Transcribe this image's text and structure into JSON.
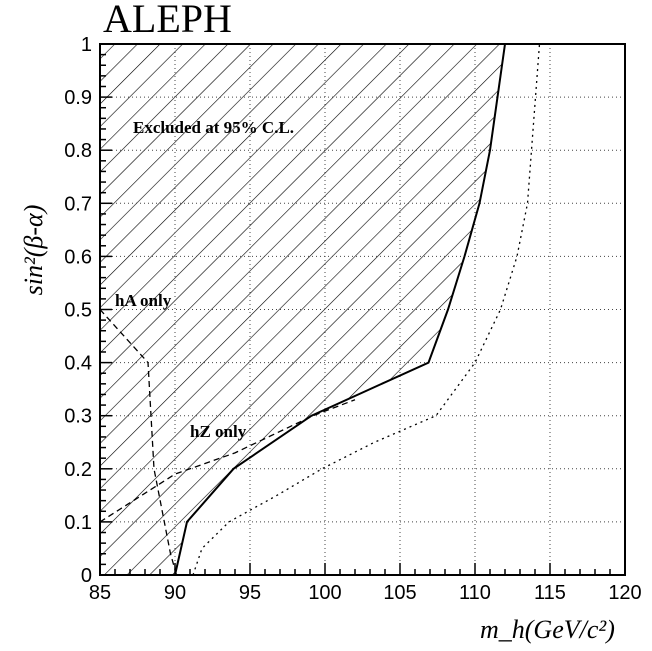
{
  "chart_data": {
    "type": "line",
    "title": "ALEPH",
    "xlabel": "m_h(GeV/c²)",
    "ylabel": "sin²(β-α)",
    "xlim": [
      85,
      120
    ],
    "ylim": [
      0,
      1
    ],
    "xticks": [
      85,
      90,
      95,
      100,
      105,
      110,
      115,
      120
    ],
    "yticks": [
      0,
      0.1,
      0.2,
      0.3,
      0.4,
      0.5,
      0.6,
      0.7,
      0.8,
      0.9,
      1
    ],
    "grid": true,
    "annotations": [
      "Excluded at 95% C.L.",
      "hA only",
      "hZ only"
    ],
    "series": [
      {
        "style": "solid",
        "fill": "hatched (excluded region)",
        "x": [
          90.0,
          90.8,
          93.9,
          99.1,
          106.9,
          108.2,
          109.3,
          110.3,
          111.0,
          112.0
        ],
        "y": [
          0.0,
          0.1,
          0.2,
          0.3,
          0.4,
          0.5,
          0.6,
          0.7,
          0.8,
          1.0
        ]
      },
      {
        "style": "dotted",
        "x": [
          91.2,
          91.8,
          93.6,
          96.8,
          99.8,
          103.3,
          107.4,
          110.0,
          111.7,
          112.8,
          113.5,
          114.3
        ],
        "y": [
          0.0,
          0.05,
          0.1,
          0.15,
          0.2,
          0.25,
          0.3,
          0.4,
          0.5,
          0.6,
          0.7,
          1.0
        ]
      },
      {
        "style": "dashed",
        "x": [
          85.0,
          88.2,
          88.6,
          89.7,
          90.1
        ],
        "y": [
          0.5,
          0.4,
          0.2,
          0.04,
          0.0
        ]
      },
      {
        "style": "dashed",
        "x": [
          85.0,
          90.0,
          94.0,
          99.2,
          102.0
        ],
        "y": [
          0.1,
          0.19,
          0.23,
          0.3,
          0.33
        ]
      }
    ]
  }
}
